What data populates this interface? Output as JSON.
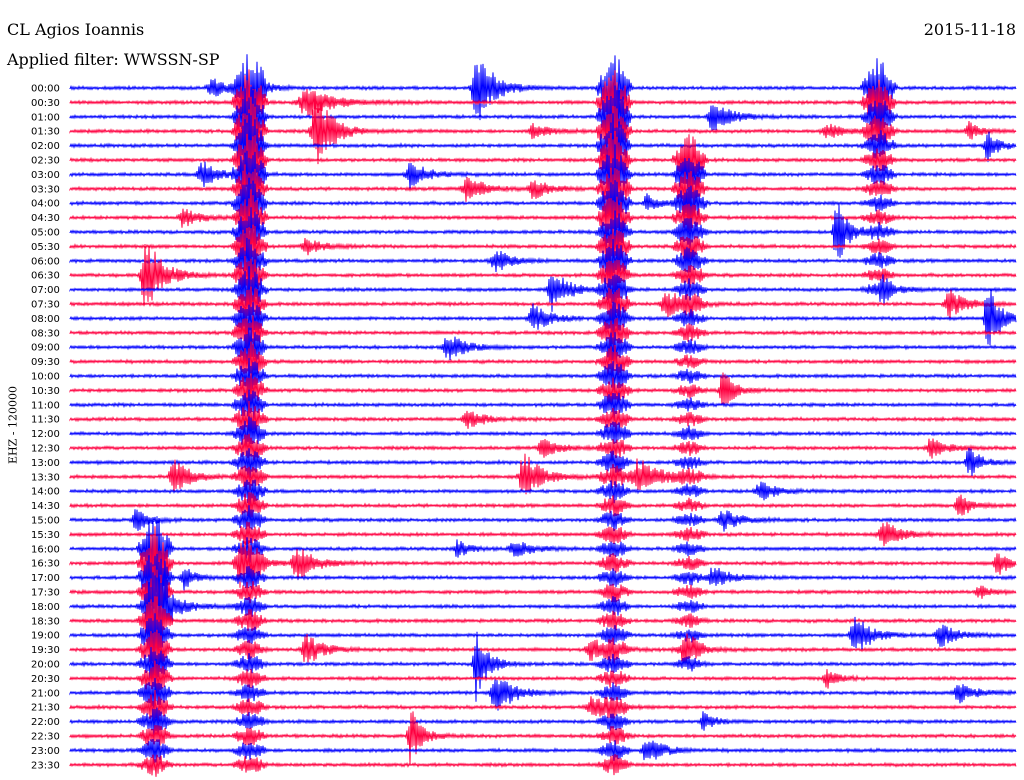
{
  "header": {
    "station": "CL Agios Ioannis",
    "date": "2015-11-18",
    "filter_label": "Applied filter: WWSSN-SP"
  },
  "chart_data": {
    "type": "line",
    "title": "CL Agios Ioannis",
    "subtitle": "Applied filter: WWSSN-SP",
    "date": "2015-11-18",
    "ylabel": "EHZ - 120000",
    "row_labels": [
      "00:00",
      "00:30",
      "01:00",
      "01:30",
      "02:00",
      "02:30",
      "03:00",
      "03:30",
      "04:00",
      "04:30",
      "05:00",
      "05:30",
      "06:00",
      "06:30",
      "07:00",
      "07:30",
      "08:00",
      "08:30",
      "09:00",
      "09:30",
      "10:00",
      "10:30",
      "11:00",
      "11:30",
      "12:00",
      "12:30",
      "13:00",
      "13:30",
      "14:00",
      "14:30",
      "15:00",
      "15:30",
      "16:00",
      "16:30",
      "17:00",
      "17:30",
      "18:00",
      "18:30",
      "19:00",
      "19:30",
      "20:00",
      "20:30",
      "21:00",
      "21:30",
      "22:00",
      "22:30",
      "23:00",
      "23:30"
    ],
    "series_colors": [
      "#0000ff",
      "#ff0040"
    ],
    "grid": false,
    "events": [
      {
        "row": 0,
        "x": 0.43,
        "amp": 40,
        "width": 0.03
      },
      {
        "row": 0,
        "x": 0.15,
        "amp": 10,
        "width": 0.03
      },
      {
        "row": 0,
        "x": 0.2,
        "amp": 10,
        "width": 0.02
      },
      {
        "row": 1,
        "x": 0.25,
        "amp": 14,
        "width": 0.05
      },
      {
        "row": 2,
        "x": 0.68,
        "amp": 18,
        "width": 0.03
      },
      {
        "row": 3,
        "x": 0.26,
        "amp": 40,
        "width": 0.03
      },
      {
        "row": 3,
        "x": 0.49,
        "amp": 8,
        "width": 0.03
      },
      {
        "row": 3,
        "x": 0.8,
        "amp": 8,
        "width": 0.03
      },
      {
        "row": 3,
        "x": 0.95,
        "amp": 10,
        "width": 0.02
      },
      {
        "row": 4,
        "x": 0.97,
        "amp": 16,
        "width": 0.02
      },
      {
        "row": 6,
        "x": 0.14,
        "amp": 14,
        "width": 0.03
      },
      {
        "row": 6,
        "x": 0.36,
        "amp": 14,
        "width": 0.03
      },
      {
        "row": 7,
        "x": 0.42,
        "amp": 14,
        "width": 0.03
      },
      {
        "row": 7,
        "x": 0.49,
        "amp": 10,
        "width": 0.03
      },
      {
        "row": 8,
        "x": 0.61,
        "amp": 10,
        "width": 0.02
      },
      {
        "row": 9,
        "x": 0.12,
        "amp": 10,
        "width": 0.03
      },
      {
        "row": 10,
        "x": 0.81,
        "amp": 40,
        "width": 0.02
      },
      {
        "row": 11,
        "x": 0.25,
        "amp": 8,
        "width": 0.03
      },
      {
        "row": 12,
        "x": 0.45,
        "amp": 12,
        "width": 0.03
      },
      {
        "row": 13,
        "x": 0.08,
        "amp": 40,
        "width": 0.03
      },
      {
        "row": 14,
        "x": 0.51,
        "amp": 22,
        "width": 0.03
      },
      {
        "row": 14,
        "x": 0.86,
        "amp": 8,
        "width": 0.03
      },
      {
        "row": 15,
        "x": 0.63,
        "amp": 14,
        "width": 0.03
      },
      {
        "row": 15,
        "x": 0.93,
        "amp": 14,
        "width": 0.03
      },
      {
        "row": 16,
        "x": 0.49,
        "amp": 14,
        "width": 0.03
      },
      {
        "row": 16,
        "x": 0.97,
        "amp": 40,
        "width": 0.02
      },
      {
        "row": 18,
        "x": 0.4,
        "amp": 14,
        "width": 0.03
      },
      {
        "row": 21,
        "x": 0.69,
        "amp": 22,
        "width": 0.02
      },
      {
        "row": 23,
        "x": 0.42,
        "amp": 10,
        "width": 0.03
      },
      {
        "row": 25,
        "x": 0.5,
        "amp": 10,
        "width": 0.03
      },
      {
        "row": 25,
        "x": 0.91,
        "amp": 10,
        "width": 0.03
      },
      {
        "row": 26,
        "x": 0.95,
        "amp": 18,
        "width": 0.02
      },
      {
        "row": 27,
        "x": 0.11,
        "amp": 18,
        "width": 0.03
      },
      {
        "row": 27,
        "x": 0.48,
        "amp": 26,
        "width": 0.03
      },
      {
        "row": 27,
        "x": 0.6,
        "amp": 20,
        "width": 0.04
      },
      {
        "row": 28,
        "x": 0.73,
        "amp": 10,
        "width": 0.03
      },
      {
        "row": 29,
        "x": 0.94,
        "amp": 14,
        "width": 0.02
      },
      {
        "row": 30,
        "x": 0.07,
        "amp": 16,
        "width": 0.02
      },
      {
        "row": 30,
        "x": 0.69,
        "amp": 12,
        "width": 0.03
      },
      {
        "row": 31,
        "x": 0.86,
        "amp": 14,
        "width": 0.03
      },
      {
        "row": 32,
        "x": 0.41,
        "amp": 10,
        "width": 0.02
      },
      {
        "row": 32,
        "x": 0.47,
        "amp": 10,
        "width": 0.03
      },
      {
        "row": 33,
        "x": 0.18,
        "amp": 20,
        "width": 0.03
      },
      {
        "row": 33,
        "x": 0.24,
        "amp": 20,
        "width": 0.03
      },
      {
        "row": 33,
        "x": 0.98,
        "amp": 14,
        "width": 0.02
      },
      {
        "row": 34,
        "x": 0.12,
        "amp": 12,
        "width": 0.02
      },
      {
        "row": 34,
        "x": 0.68,
        "amp": 12,
        "width": 0.03
      },
      {
        "row": 35,
        "x": 0.96,
        "amp": 8,
        "width": 0.02
      },
      {
        "row": 36,
        "x": 0.09,
        "amp": 40,
        "width": 0.03
      },
      {
        "row": 38,
        "x": 0.83,
        "amp": 20,
        "width": 0.03
      },
      {
        "row": 38,
        "x": 0.92,
        "amp": 12,
        "width": 0.03
      },
      {
        "row": 39,
        "x": 0.25,
        "amp": 16,
        "width": 0.03
      },
      {
        "row": 39,
        "x": 0.55,
        "amp": 12,
        "width": 0.03
      },
      {
        "row": 39,
        "x": 0.65,
        "amp": 10,
        "width": 0.03
      },
      {
        "row": 40,
        "x": 0.43,
        "amp": 40,
        "width": 0.02
      },
      {
        "row": 41,
        "x": 0.8,
        "amp": 10,
        "width": 0.02
      },
      {
        "row": 42,
        "x": 0.45,
        "amp": 24,
        "width": 0.03
      },
      {
        "row": 42,
        "x": 0.94,
        "amp": 10,
        "width": 0.03
      },
      {
        "row": 43,
        "x": 0.55,
        "amp": 10,
        "width": 0.03
      },
      {
        "row": 44,
        "x": 0.67,
        "amp": 10,
        "width": 0.02
      },
      {
        "row": 45,
        "x": 0.36,
        "amp": 30,
        "width": 0.02
      },
      {
        "row": 46,
        "x": 0.61,
        "amp": 14,
        "width": 0.03
      }
    ],
    "long_events": [
      {
        "x": 0.19,
        "row_start": 0,
        "row_end": 47,
        "decay_rows": 28,
        "amp": 40
      },
      {
        "x": 0.575,
        "row_start": 0,
        "row_end": 47,
        "decay_rows": 22,
        "amp": 40
      },
      {
        "x": 0.655,
        "row_start": 5,
        "row_end": 40,
        "decay_rows": 10,
        "amp": 28
      },
      {
        "x": 0.855,
        "row_start": 0,
        "row_end": 14,
        "decay_rows": 6,
        "amp": 32
      },
      {
        "x": 0.09,
        "row_start": 32,
        "row_end": 47,
        "decay_rows": 12,
        "amp": 40
      }
    ]
  }
}
